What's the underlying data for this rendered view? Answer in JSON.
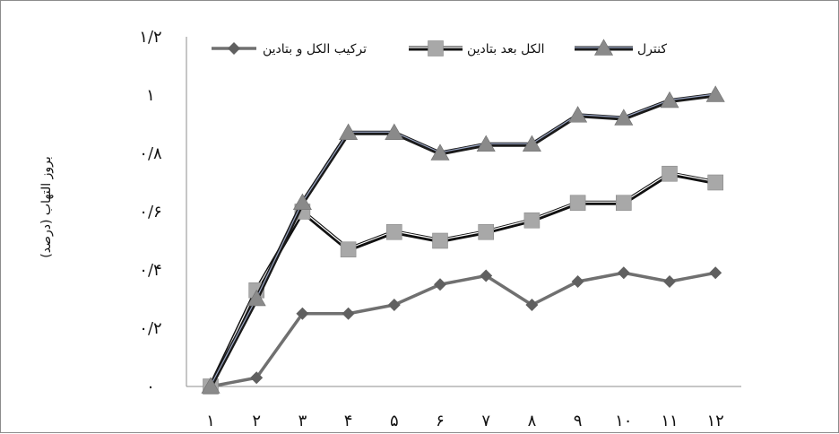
{
  "chart_data": {
    "type": "line",
    "ylabel": "بروز التهاب (درصد)",
    "xlabel": "",
    "ylim": [
      0,
      1.2
    ],
    "y_ticks": [
      {
        "value": 0,
        "label": "۰"
      },
      {
        "value": 0.2,
        "label": "۰/۲"
      },
      {
        "value": 0.4,
        "label": "۰/۴"
      },
      {
        "value": 0.6,
        "label": "۰/۶"
      },
      {
        "value": 0.8,
        "label": "۰/۸"
      },
      {
        "value": 1.0,
        "label": "۱"
      },
      {
        "value": 1.2,
        "label": "۱/۲"
      }
    ],
    "categories": [
      "۱",
      "۲",
      "۳",
      "۴",
      "۵",
      "۶",
      "۷",
      "۸",
      "۹",
      "۱۰",
      "۱۱",
      "۱۲"
    ],
    "grid": false,
    "legend_position": "top",
    "series": [
      {
        "name": "کنترل",
        "marker": "triangle",
        "line_color": "#1a1a1a",
        "line_highlight": "#9aa6c4",
        "marker_color": "#8a8a8a",
        "values": [
          0,
          0.3,
          0.63,
          0.87,
          0.87,
          0.8,
          0.83,
          0.83,
          0.93,
          0.92,
          0.98,
          1.0
        ]
      },
      {
        "name": "الکل بعد بتادین",
        "marker": "square",
        "line_color": "#111111",
        "line_highlight": "#ffffff",
        "marker_color": "#a8a8a8",
        "values": [
          0,
          0.33,
          0.6,
          0.47,
          0.53,
          0.5,
          0.53,
          0.57,
          0.63,
          0.63,
          0.73,
          0.7
        ]
      },
      {
        "name": "ترکیب الکل و بتادین",
        "marker": "diamond",
        "line_color": "#707070",
        "line_highlight": "",
        "marker_color": "#606060",
        "values": [
          0,
          0.03,
          0.25,
          0.25,
          0.28,
          0.35,
          0.38,
          0.28,
          0.36,
          0.39,
          0.36,
          0.39
        ]
      }
    ]
  }
}
